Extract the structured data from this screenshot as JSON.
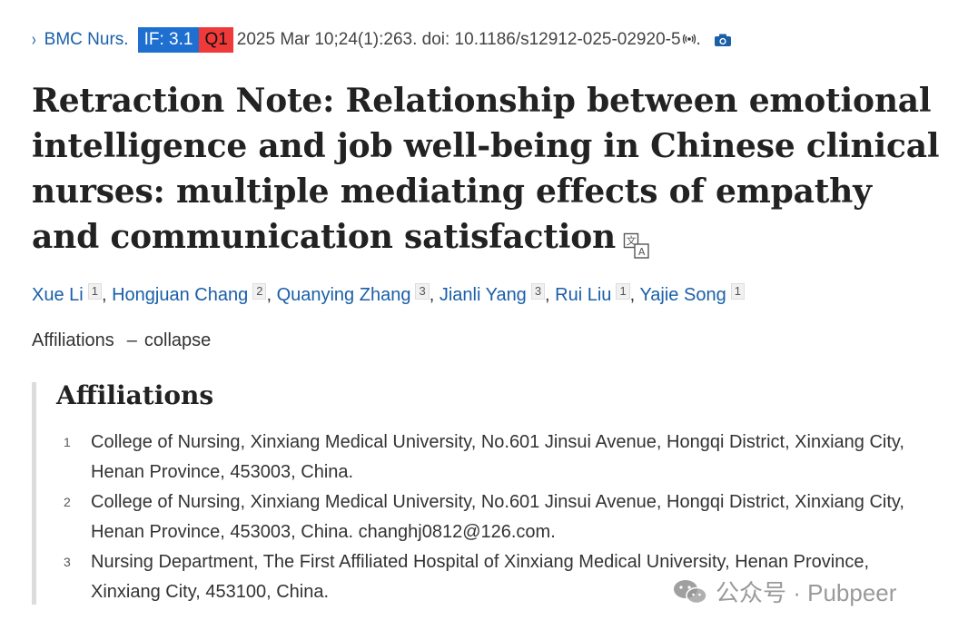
{
  "citation": {
    "chevron": "›",
    "journal": "BMC Nurs.",
    "impact_factor": "IF: 3.1",
    "quartile": "Q1",
    "text": "2025 Mar 10;24(1):263. doi: 10.1186/s12912-025-02920-5",
    "period": ".",
    "icons": [
      "chevron-right-icon",
      "radio-signal-icon",
      "camera-icon"
    ],
    "colors": {
      "link": "#1a5fa8",
      "if_badge": "#1f6fd0",
      "q_badge": "#f03a3a"
    }
  },
  "article": {
    "title": "Retraction Note: Relationship between emotional intelligence and job well-being in Chinese clinical nurses: multiple mediating effects of empathy and communication satisfaction",
    "translate_icon": "translate-icon"
  },
  "authors": [
    {
      "name": "Xue Li",
      "aff": "1"
    },
    {
      "name": "Hongjuan Chang",
      "aff": "2"
    },
    {
      "name": "Quanying Zhang",
      "aff": "3"
    },
    {
      "name": "Jianli Yang",
      "aff": "3"
    },
    {
      "name": "Rui Liu",
      "aff": "1"
    },
    {
      "name": "Yajie Song",
      "aff": "1"
    }
  ],
  "author_separator": ",",
  "affiliations_toggle": {
    "label": "Affiliations",
    "dash": "–",
    "action": "collapse"
  },
  "affiliations": {
    "heading": "Affiliations",
    "items": [
      {
        "num": "1",
        "text": "College of Nursing, Xinxiang Medical University, No.601 Jinsui Avenue, Hongqi District, Xinxiang City, Henan Province, 453003, China."
      },
      {
        "num": "2",
        "text": "College of Nursing, Xinxiang Medical University, No.601 Jinsui Avenue, Hongqi District, Xinxiang City, Henan Province, 453003, China. changhj0812@126.com."
      },
      {
        "num": "3",
        "text": "Nursing Department, The First Affiliated Hospital of Xinxiang Medical University, Henan Province, Xinxiang City, 453100, China."
      }
    ]
  },
  "watermark": {
    "text": "公众号 · Pubpeer",
    "icon": "wechat-logo-icon"
  }
}
